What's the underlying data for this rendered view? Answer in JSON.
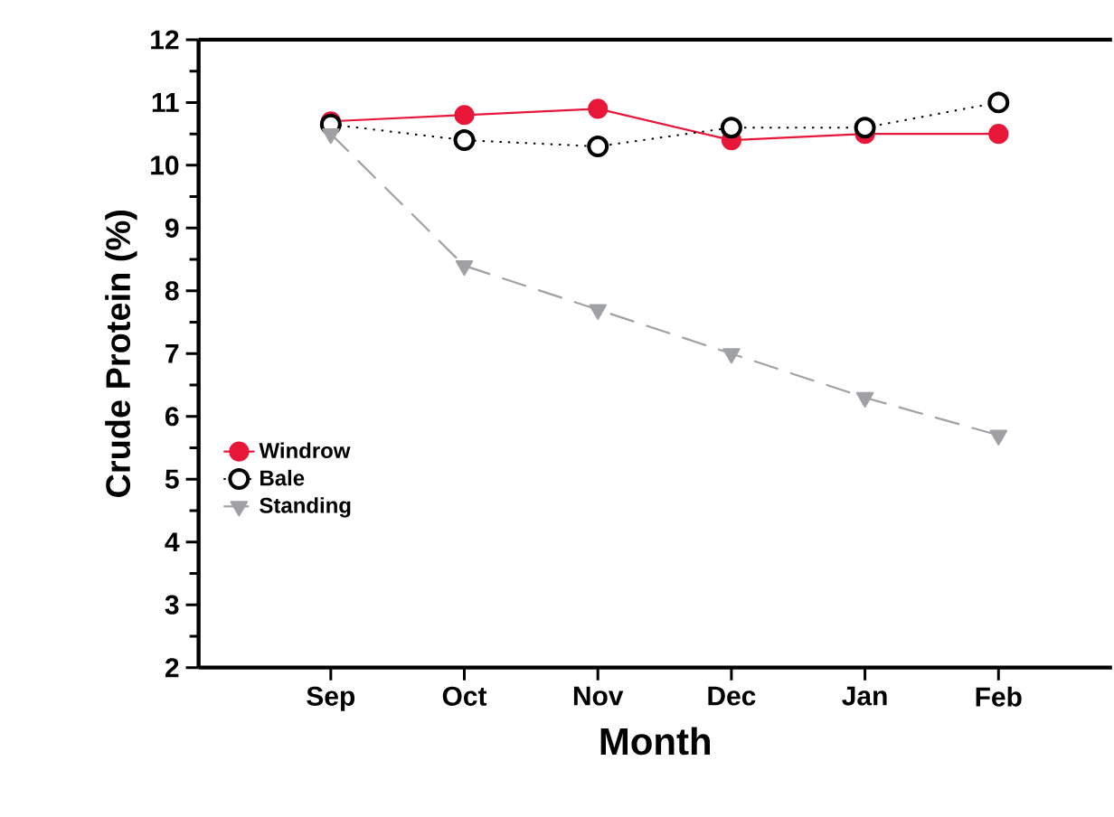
{
  "chart_data": {
    "type": "line",
    "xlabel": "Month",
    "ylabel": "Crude Protein (%)",
    "categories": [
      "Sep",
      "Oct",
      "Nov",
      "Dec",
      "Jan",
      "Feb"
    ],
    "series": [
      {
        "name": "Windrow",
        "color": "#e8173a",
        "marker": "circle",
        "line_style": "solid",
        "values": [
          10.7,
          10.8,
          10.9,
          10.4,
          10.5,
          10.5
        ]
      },
      {
        "name": "Bale",
        "color": "#000000",
        "marker": "circle",
        "line_style": "dotted",
        "values": [
          10.65,
          10.4,
          10.3,
          10.6,
          10.6,
          11.0
        ]
      },
      {
        "name": "Standing",
        "color": "#a0a1a4",
        "marker": "triangle",
        "line_style": "dashed",
        "values": [
          10.5,
          8.4,
          7.7,
          7.0,
          6.3,
          5.7
        ]
      }
    ],
    "ylim": [
      2,
      12
    ],
    "yticks": [
      2,
      3,
      4,
      5,
      6,
      7,
      8,
      9,
      10,
      11,
      12
    ],
    "grid": false,
    "legend": "bottom left"
  }
}
